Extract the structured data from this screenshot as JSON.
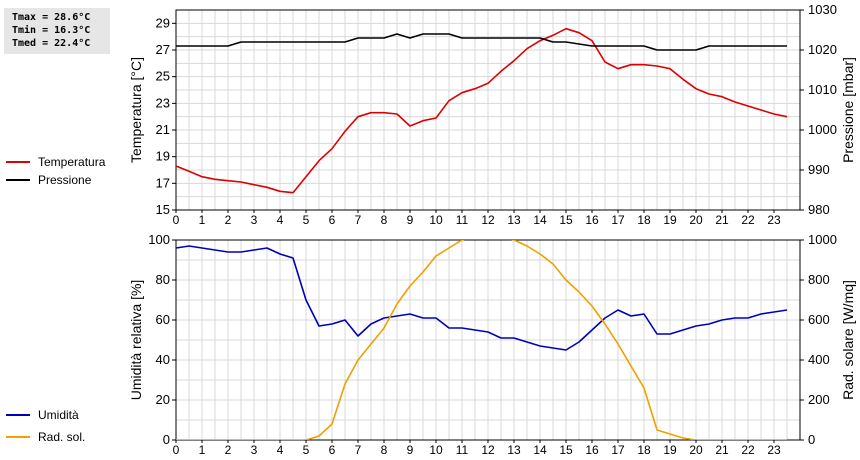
{
  "stats": {
    "tmax": "Tmax = 28.6°C",
    "tmin": "Tmin = 16.3°C",
    "tmed": "Tmed = 22.4°C"
  },
  "colors": {
    "temperature": "#dd0000",
    "pressure": "#000000",
    "humidity": "#0000bb",
    "radiation": "#f0a000",
    "grid": "#d8d8d8"
  },
  "chart_data": [
    {
      "type": "line",
      "x_ticks": [
        "0",
        "1",
        "2",
        "3",
        "4",
        "5",
        "6",
        "7",
        "8",
        "9",
        "10",
        "11",
        "12",
        "13",
        "14",
        "15",
        "16",
        "17",
        "18",
        "19",
        "20",
        "21",
        "22",
        "23"
      ],
      "x_range": [
        0,
        24
      ],
      "y_left": {
        "label": "Temperatura [°C]",
        "range": [
          15,
          30
        ],
        "ticks": [
          "15",
          "17",
          "19",
          "21",
          "23",
          "25",
          "27",
          "29"
        ]
      },
      "y_right": {
        "label": "Pressione [mbar]",
        "range": [
          980,
          1030
        ],
        "ticks": [
          "980",
          "990",
          "1000",
          "1010",
          "1020",
          "1030"
        ]
      },
      "grid": true,
      "legend_placement": "left",
      "series": [
        {
          "name": "Temperatura",
          "axis": "left",
          "x": [
            0,
            0.5,
            1,
            1.5,
            2,
            2.5,
            3,
            3.5,
            4,
            4.5,
            5,
            5.5,
            6,
            6.5,
            7,
            7.5,
            8,
            8.5,
            9,
            9.5,
            10,
            10.5,
            11,
            11.5,
            12,
            12.5,
            13,
            13.5,
            14,
            14.5,
            15,
            15.5,
            16,
            16.5,
            17,
            17.5,
            18,
            18.5,
            19,
            19.5,
            20,
            20.5,
            21,
            21.5,
            22,
            22.5,
            23,
            23.5
          ],
          "y": [
            18.3,
            17.9,
            17.5,
            17.3,
            17.2,
            17.1,
            16.9,
            16.7,
            16.4,
            16.3,
            17.5,
            18.7,
            19.6,
            20.9,
            22.0,
            22.3,
            22.3,
            22.2,
            21.3,
            21.7,
            21.9,
            23.2,
            23.8,
            24.1,
            24.5,
            25.4,
            26.2,
            27.1,
            27.7,
            28.1,
            28.6,
            28.3,
            27.7,
            26.1,
            25.6,
            25.9,
            25.9,
            25.8,
            25.6,
            24.8,
            24.1,
            23.7,
            23.5,
            23.1,
            22.8,
            22.5,
            22.2,
            22.0
          ]
        },
        {
          "name": "Pressione",
          "axis": "right",
          "x": [
            0,
            1,
            2,
            2.5,
            3,
            4,
            5,
            6,
            6.5,
            7,
            8,
            8.5,
            9,
            9.5,
            10,
            10.5,
            11,
            12,
            13,
            14,
            14.5,
            15,
            16,
            17,
            18,
            18.5,
            19,
            20,
            20.5,
            21,
            22,
            23,
            23.5
          ],
          "y": [
            1021,
            1021,
            1021,
            1022,
            1022,
            1022,
            1022,
            1022,
            1022,
            1023,
            1023,
            1024,
            1023,
            1024,
            1024,
            1024,
            1023,
            1023,
            1023,
            1023,
            1022,
            1022,
            1021,
            1021,
            1021,
            1020,
            1020,
            1020,
            1021,
            1021,
            1021,
            1021,
            1021
          ]
        }
      ]
    },
    {
      "type": "line",
      "x_ticks": [
        "0",
        "1",
        "2",
        "3",
        "4",
        "5",
        "6",
        "7",
        "8",
        "9",
        "10",
        "11",
        "12",
        "13",
        "14",
        "15",
        "16",
        "17",
        "18",
        "19",
        "20",
        "21",
        "22",
        "23"
      ],
      "x_range": [
        0,
        24
      ],
      "y_left": {
        "label": "Umidità relativa [%]",
        "range": [
          0,
          100
        ],
        "ticks": [
          "0",
          "20",
          "40",
          "60",
          "80",
          "100"
        ]
      },
      "y_right": {
        "label": "Rad. solare [W/mq]",
        "range": [
          0,
          1000
        ],
        "ticks": [
          "0",
          "200",
          "400",
          "600",
          "800",
          "1000"
        ]
      },
      "grid": true,
      "legend_placement": "left",
      "series": [
        {
          "name": "Umidità",
          "axis": "left",
          "x": [
            0,
            0.5,
            1,
            1.5,
            2,
            2.5,
            3,
            3.5,
            4,
            4.5,
            5,
            5.5,
            6,
            6.5,
            7,
            7.5,
            8,
            8.5,
            9,
            9.5,
            10,
            10.5,
            11,
            11.5,
            12,
            12.5,
            13,
            13.5,
            14,
            14.5,
            15,
            15.5,
            16,
            16.5,
            17,
            17.5,
            18,
            18.5,
            19,
            19.5,
            20,
            20.5,
            21,
            21.5,
            22,
            22.5,
            23,
            23.5
          ],
          "y": [
            96,
            97,
            96,
            95,
            94,
            94,
            95,
            96,
            93,
            91,
            70,
            57,
            58,
            60,
            52,
            58,
            61,
            62,
            63,
            61,
            61,
            56,
            56,
            55,
            54,
            51,
            51,
            49,
            47,
            46,
            45,
            49,
            55,
            61,
            65,
            62,
            63,
            53,
            53,
            55,
            57,
            58,
            60,
            61,
            61,
            63,
            64,
            65
          ]
        },
        {
          "name": "Rad. sol.",
          "axis": "right",
          "x": [
            0,
            1,
            2,
            3,
            4,
            5,
            5.5,
            6,
            6.5,
            7,
            7.5,
            8,
            8.5,
            9,
            9.5,
            10,
            10.5,
            11,
            12,
            13,
            13.5,
            14,
            14.5,
            15,
            15.5,
            16,
            16.5,
            17,
            17.5,
            18,
            18.5,
            19,
            19.5,
            20,
            21,
            22,
            23,
            23.5
          ],
          "y": [
            0,
            0,
            0,
            0,
            0,
            0,
            20,
            80,
            280,
            400,
            480,
            560,
            680,
            770,
            840,
            920,
            960,
            1000,
            1040,
            1000,
            970,
            930,
            880,
            800,
            740,
            670,
            580,
            480,
            370,
            260,
            50,
            30,
            10,
            0,
            0,
            0,
            0,
            0
          ]
        }
      ]
    }
  ]
}
